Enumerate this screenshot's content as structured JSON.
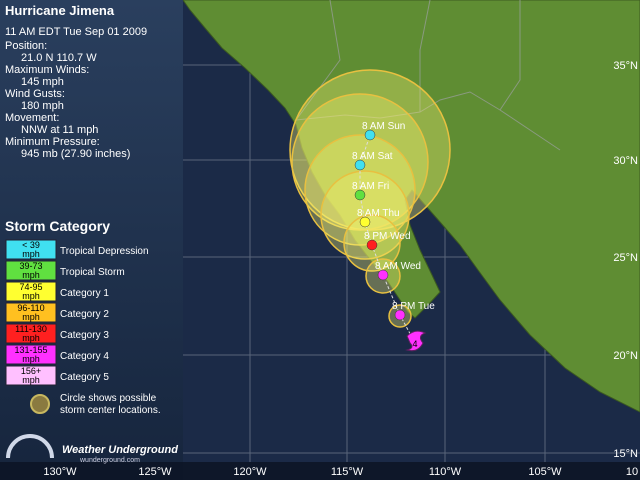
{
  "header": {
    "title": "Hurricane Jimena",
    "timestamp": "11 AM EDT Tue Sep 01 2009"
  },
  "info": [
    {
      "label": "Position:",
      "value": "21.0 N 110.7 W"
    },
    {
      "label": "Maximum Winds:",
      "value": "145 mph"
    },
    {
      "label": "Wind Gusts:",
      "value": "180 mph"
    },
    {
      "label": "Movement:",
      "value": "NNW at 11 mph"
    },
    {
      "label": "Minimum Pressure:",
      "value": "945 mb (27.90 inches)"
    }
  ],
  "legend": {
    "title": "Storm Category",
    "items": [
      {
        "range": "< 39",
        "unit": "mph",
        "label": "Tropical Depression",
        "color": "#40e0f0"
      },
      {
        "range": "39-73",
        "unit": "mph",
        "label": "Tropical Storm",
        "color": "#60e040"
      },
      {
        "range": "74-95",
        "unit": "mph",
        "label": "Category 1",
        "color": "#ffff30"
      },
      {
        "range": "96-110",
        "unit": "mph",
        "label": "Category 2",
        "color": "#ffc020"
      },
      {
        "range": "111-130",
        "unit": "mph",
        "label": "Category 3",
        "color": "#ff2020"
      },
      {
        "range": "131-155",
        "unit": "mph",
        "label": "Category 4",
        "color": "#ff30ff"
      },
      {
        "range": "156+",
        "unit": "mph",
        "label": "Category 5",
        "color": "#ffc0ff"
      }
    ],
    "circle_note": [
      "Circle shows possible",
      "storm center locations."
    ]
  },
  "logo": {
    "name": "Weather Underground",
    "url": "wunderground.com"
  },
  "map": {
    "lon_labels": [
      "130°W",
      "125°W",
      "120°W",
      "115°W",
      "110°W",
      "105°W",
      "10"
    ],
    "lat_labels": [
      "35°N",
      "30°N",
      "25°N",
      "20°N",
      "15°N"
    ],
    "forecast": [
      {
        "label": "8 AM Sun",
        "color": "#40e0f0"
      },
      {
        "label": "8 AM Sat",
        "color": "#40e0f0"
      },
      {
        "label": "8 AM Fri",
        "color": "#60e040"
      },
      {
        "label": "8 AM Thu",
        "color": "#ffff30"
      },
      {
        "label": "8 PM Wed",
        "color": "#ff2020"
      },
      {
        "label": "8 AM Wed",
        "color": "#ff30ff"
      },
      {
        "label": "8 PM Tue",
        "color": "#ff30ff"
      }
    ],
    "current": {
      "category": "4",
      "color": "#ff30ff"
    }
  }
}
